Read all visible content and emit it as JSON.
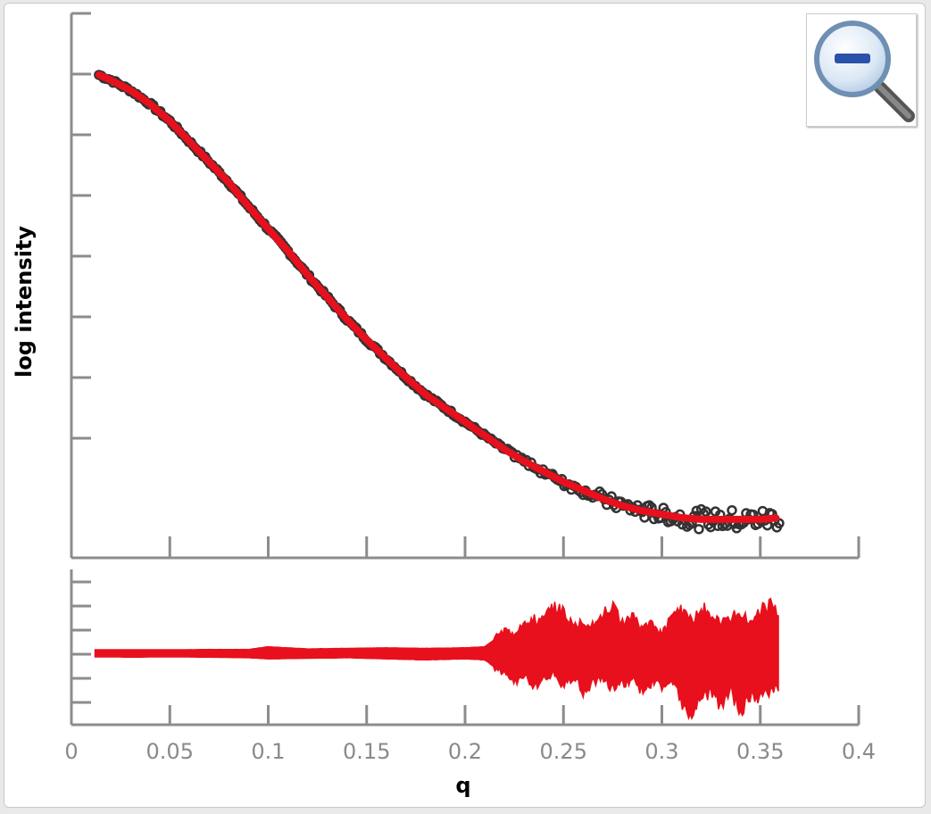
{
  "chart_data": [
    {
      "type": "scatter",
      "panel": "fit",
      "xlabel": "q",
      "ylabel": "log intensity",
      "xlim": [
        0,
        0.4
      ],
      "ytick_count": 8,
      "series": [
        {
          "kind": "points",
          "color": "#333333",
          "x": [
            0.014,
            0.02,
            0.03,
            0.04,
            0.05,
            0.06,
            0.07,
            0.08,
            0.09,
            0.1,
            0.11,
            0.12,
            0.13,
            0.14,
            0.15,
            0.16,
            0.17,
            0.18,
            0.19,
            0.2,
            0.21,
            0.22,
            0.23,
            0.24,
            0.25,
            0.26,
            0.27,
            0.28,
            0.29,
            0.3,
            0.31,
            0.32,
            0.33,
            0.34,
            0.35,
            0.36
          ],
          "y": [
            0.995,
            0.98,
            0.95,
            0.91,
            0.86,
            0.8,
            0.74,
            0.68,
            0.61,
            0.545,
            0.48,
            0.41,
            0.345,
            0.28,
            0.22,
            0.165,
            0.11,
            0.06,
            0.02,
            -0.02,
            -0.06,
            -0.1,
            -0.135,
            -0.165,
            -0.195,
            -0.22,
            -0.245,
            -0.265,
            -0.28,
            -0.29,
            -0.3,
            -0.305,
            -0.305,
            -0.305,
            -0.305,
            -0.3
          ]
        },
        {
          "kind": "line",
          "color": "#e8101c",
          "x": [
            0.014,
            0.02,
            0.03,
            0.04,
            0.05,
            0.06,
            0.07,
            0.08,
            0.09,
            0.1,
            0.11,
            0.12,
            0.13,
            0.14,
            0.15,
            0.16,
            0.17,
            0.18,
            0.19,
            0.2,
            0.21,
            0.22,
            0.23,
            0.24,
            0.25,
            0.26,
            0.27,
            0.28,
            0.29,
            0.3,
            0.31,
            0.32,
            0.33,
            0.34,
            0.35,
            0.36
          ],
          "y": [
            0.995,
            0.98,
            0.95,
            0.91,
            0.86,
            0.8,
            0.74,
            0.68,
            0.61,
            0.545,
            0.48,
            0.41,
            0.345,
            0.28,
            0.22,
            0.165,
            0.11,
            0.06,
            0.02,
            -0.02,
            -0.06,
            -0.1,
            -0.135,
            -0.165,
            -0.195,
            -0.22,
            -0.245,
            -0.265,
            -0.28,
            -0.29,
            -0.3,
            -0.305,
            -0.305,
            -0.305,
            -0.305,
            -0.3
          ]
        }
      ]
    },
    {
      "type": "area",
      "panel": "residuals",
      "color": "#e8101c",
      "xlim": [
        0,
        0.4
      ],
      "xticks": [
        "0",
        "0.05",
        "0.1",
        "0.15",
        "0.2",
        "0.25",
        "0.3",
        "0.35",
        "0.4"
      ],
      "ytick_count": 6,
      "x": [
        0.012,
        0.03,
        0.05,
        0.07,
        0.09,
        0.1,
        0.12,
        0.14,
        0.16,
        0.18,
        0.2,
        0.21,
        0.215,
        0.22,
        0.225,
        0.23,
        0.235,
        0.24,
        0.245,
        0.25,
        0.255,
        0.26,
        0.265,
        0.27,
        0.275,
        0.28,
        0.285,
        0.29,
        0.295,
        0.3,
        0.305,
        0.31,
        0.315,
        0.32,
        0.325,
        0.33,
        0.335,
        0.34,
        0.345,
        0.35,
        0.355,
        0.36
      ],
      "upper": [
        0.06,
        0.05,
        0.06,
        0.07,
        0.07,
        0.12,
        0.08,
        0.09,
        0.1,
        0.09,
        0.1,
        0.12,
        0.25,
        0.35,
        0.3,
        0.45,
        0.55,
        0.5,
        0.75,
        0.65,
        0.4,
        0.5,
        0.45,
        0.6,
        0.7,
        0.5,
        0.55,
        0.4,
        0.45,
        0.3,
        0.55,
        0.65,
        0.5,
        0.7,
        0.6,
        0.45,
        0.55,
        0.6,
        0.5,
        0.65,
        0.75,
        0.6
      ],
      "lower": [
        -0.06,
        -0.07,
        -0.06,
        -0.07,
        -0.08,
        -0.1,
        -0.09,
        -0.08,
        -0.1,
        -0.12,
        -0.1,
        -0.12,
        -0.25,
        -0.3,
        -0.45,
        -0.35,
        -0.5,
        -0.4,
        -0.3,
        -0.55,
        -0.35,
        -0.6,
        -0.45,
        -0.4,
        -0.55,
        -0.5,
        -0.4,
        -0.6,
        -0.45,
        -0.5,
        -0.4,
        -0.75,
        -0.9,
        -0.7,
        -0.6,
        -0.8,
        -0.55,
        -0.95,
        -0.65,
        -0.7,
        -0.6,
        -0.5
      ]
    }
  ],
  "zoom_button": {
    "icon": "zoom-out-icon",
    "colors": {
      "lens": "#2d6fb8",
      "minus": "#2a52a8",
      "handle": "#444444"
    }
  }
}
